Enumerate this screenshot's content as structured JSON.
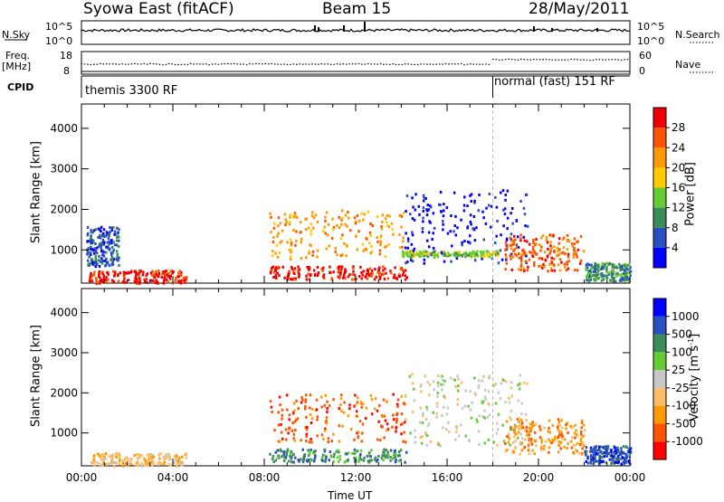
{
  "header": {
    "station": "Syowa East (fitACF)",
    "beam": "Beam 15",
    "date": "28/May/2011"
  },
  "noise_panel": {
    "left_label": "N.Sky",
    "right_label": "N.Search",
    "left_ticks": [
      "10^5",
      "10^0"
    ],
    "right_ticks": [
      "10^5",
      "10^0"
    ],
    "left_legend_line": "solid",
    "right_legend_line": "dotted"
  },
  "freq_panel": {
    "left_label_1": "Freq.",
    "left_label_2": "[MHz]",
    "right_label": "Nave",
    "left_ticks": [
      "18",
      "8"
    ],
    "right_ticks": [
      "60",
      "0"
    ]
  },
  "cpid_panel": {
    "label": "CPID",
    "modes": [
      "themis 3300 RF",
      "normal (fast) 151 RF"
    ],
    "mode_change_time": "18:00"
  },
  "colors": {
    "power_scale": [
      "#0000ff",
      "#2a4fbf",
      "#3c8c5a",
      "#66cc33",
      "#ffcc00",
      "#ff9900",
      "#ff5500",
      "#ee0000"
    ],
    "velocity_scale": [
      "#ff0000",
      "#ff5500",
      "#ff9900",
      "#ffbb66",
      "#c8c8c8",
      "#66cc33",
      "#3c8c5a",
      "#2a4fbf",
      "#0000ff"
    ]
  },
  "chart_data": [
    {
      "type": "heatmap",
      "name": "power",
      "ylabel": "Slant Range [km]",
      "xlabel": "Time UT",
      "x_ticks": [
        "00:00",
        "04:00",
        "08:00",
        "12:00",
        "16:00",
        "20:00",
        "00:00"
      ],
      "y_ticks": [
        "1000",
        "2000",
        "3000",
        "4000"
      ],
      "xlim_hours": [
        0,
        24
      ],
      "ylim": [
        180,
        4600
      ],
      "colorbar_label": "Power [dB]",
      "colorbar_ticks": [
        "4",
        "8",
        "12",
        "16",
        "20",
        "24",
        "28"
      ],
      "scatter_regions": [
        {
          "t": [
            0.3,
            4.6
          ],
          "r": [
            200,
            520
          ],
          "level": 7
        },
        {
          "t": [
            0.2,
            1.6
          ],
          "r": [
            620,
            1600
          ],
          "level": 1
        },
        {
          "t": [
            8.2,
            14.2
          ],
          "r": [
            300,
            620
          ],
          "level": 7
        },
        {
          "t": [
            8.2,
            14.2
          ],
          "r": [
            800,
            2000
          ],
          "level": 5
        },
        {
          "t": [
            14.0,
            19.5
          ],
          "r": [
            700,
            2500
          ],
          "level": 0
        },
        {
          "t": [
            14.0,
            18.2
          ],
          "r": [
            860,
            1000
          ],
          "level": 3
        },
        {
          "t": [
            18.5,
            22.0
          ],
          "r": [
            500,
            1400
          ],
          "level": 6
        },
        {
          "t": [
            22.0,
            24.0
          ],
          "r": [
            250,
            700
          ],
          "level": 2
        }
      ]
    },
    {
      "type": "heatmap",
      "name": "velocity",
      "ylabel": "Slant Range [km]",
      "xlabel": "Time UT",
      "x_ticks": [
        "00:00",
        "04:00",
        "08:00",
        "12:00",
        "16:00",
        "20:00",
        "00:00"
      ],
      "y_ticks": [
        "1000",
        "2000",
        "3000",
        "4000"
      ],
      "xlim_hours": [
        0,
        24
      ],
      "ylim": [
        180,
        4600
      ],
      "colorbar_label": "Velocity  [m s",
      "colorbar_sup": "-1",
      "colorbar_label_end": "]",
      "colorbar_ticks": [
        "-1000",
        "-500",
        "-100",
        "-25",
        "25",
        "100",
        "500",
        "1000"
      ],
      "scatter_regions": [
        {
          "t": [
            0.3,
            4.6
          ],
          "r": [
            200,
            520
          ],
          "level": 3
        },
        {
          "t": [
            8.2,
            14.2
          ],
          "r": [
            300,
            620
          ],
          "level": 6
        },
        {
          "t": [
            8.2,
            14.2
          ],
          "r": [
            800,
            2000
          ],
          "level": 1
        },
        {
          "t": [
            14.0,
            19.5
          ],
          "r": [
            700,
            2500
          ],
          "level": 4
        },
        {
          "t": [
            18.5,
            22.0
          ],
          "r": [
            500,
            1400
          ],
          "level": 2
        },
        {
          "t": [
            22.0,
            24.0
          ],
          "r": [
            250,
            700
          ],
          "level": 7
        }
      ]
    }
  ]
}
